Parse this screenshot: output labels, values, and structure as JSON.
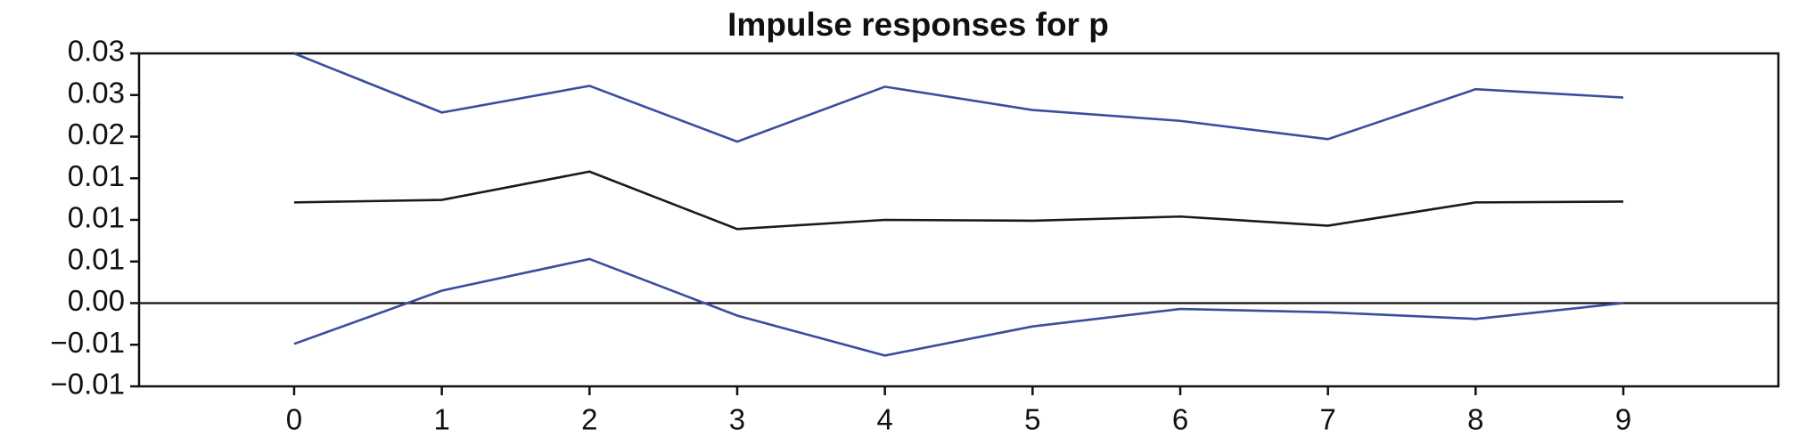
{
  "chart_data": {
    "type": "line",
    "title": "Impulse responses for p",
    "x": [
      0,
      1,
      2,
      3,
      4,
      5,
      6,
      7,
      8,
      9
    ],
    "series": [
      {
        "color": "#3a4d9f",
        "values": [
          0.03,
          0.0229,
          0.0261,
          0.0194,
          0.026,
          0.0232,
          0.0219,
          0.0197,
          0.0257,
          0.0247
        ]
      },
      {
        "color": "#1a1a1a",
        "values": [
          0.0121,
          0.0124,
          0.0158,
          0.0089,
          0.01,
          0.0099,
          0.0104,
          0.0093,
          0.0121,
          0.0122
        ]
      },
      {
        "color": "#3a4d9f",
        "values": [
          -0.0049,
          0.0015,
          0.0053,
          -0.0015,
          -0.0063,
          -0.0028,
          -0.0007,
          -0.0011,
          -0.0019,
          0.0
        ]
      }
    ],
    "xlim": [
      -1.05,
      10.05
    ],
    "xticks": [
      0,
      1,
      2,
      3,
      4,
      5,
      6,
      7,
      8,
      9
    ],
    "ylim": [
      -0.01,
      0.03
    ],
    "yticks": [
      {
        "value": -0.01,
        "label": "−0.01"
      },
      {
        "value": -0.005,
        "label": "−0.01"
      },
      {
        "value": 0,
        "label": "0.00"
      },
      {
        "value": 0.005,
        "label": "0.01"
      },
      {
        "value": 0.01,
        "label": "0.01"
      },
      {
        "value": 0.015,
        "label": "0.01"
      },
      {
        "value": 0.02,
        "label": "0.02"
      },
      {
        "value": 0.025,
        "label": "0.03"
      },
      {
        "value": 0.03,
        "label": "0.03"
      }
    ],
    "grid": false
  }
}
